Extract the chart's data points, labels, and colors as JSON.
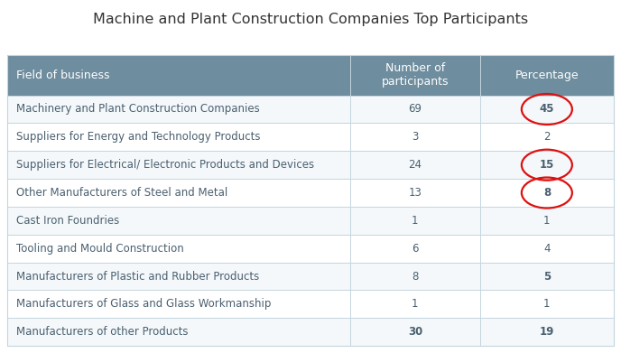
{
  "title": "Machine and Plant Construction Companies Top Participants",
  "header": [
    "Field of business",
    "Number of\nparticipants",
    "Percentage"
  ],
  "rows": [
    [
      "Machinery and Plant Construction Companies",
      "69",
      "45"
    ],
    [
      "Suppliers for Energy and Technology Products",
      "3",
      "2"
    ],
    [
      "Suppliers for Electrical/ Electronic Products and Devices",
      "24",
      "15"
    ],
    [
      "Other Manufacturers of Steel and Metal",
      "13",
      "8"
    ],
    [
      "Cast Iron Foundries",
      "1",
      "1"
    ],
    [
      "Tooling and Mould Construction",
      "6",
      "4"
    ],
    [
      "Manufacturers of Plastic and Rubber Products",
      "8",
      "5"
    ],
    [
      "Manufacturers of Glass and Glass Workmanship",
      "1",
      "1"
    ],
    [
      "Manufacturers of other Products",
      "30",
      "19"
    ]
  ],
  "circled_rows": [
    0,
    2,
    3
  ],
  "bold_rows_col2": [
    6,
    8
  ],
  "bold_rows_col1": [
    8
  ],
  "header_bg": "#6e8d9e",
  "header_text_color": "#ffffff",
  "row_bg_even": "#f4f8fa",
  "row_bg_odd": "#ffffff",
  "border_color": "#c5d5df",
  "cell_text_color": "#4a6070",
  "circle_color": "#dd1111",
  "title_color": "#333333",
  "title_fontsize": 11.5,
  "header_fontsize": 9,
  "cell_fontsize": 8.5
}
